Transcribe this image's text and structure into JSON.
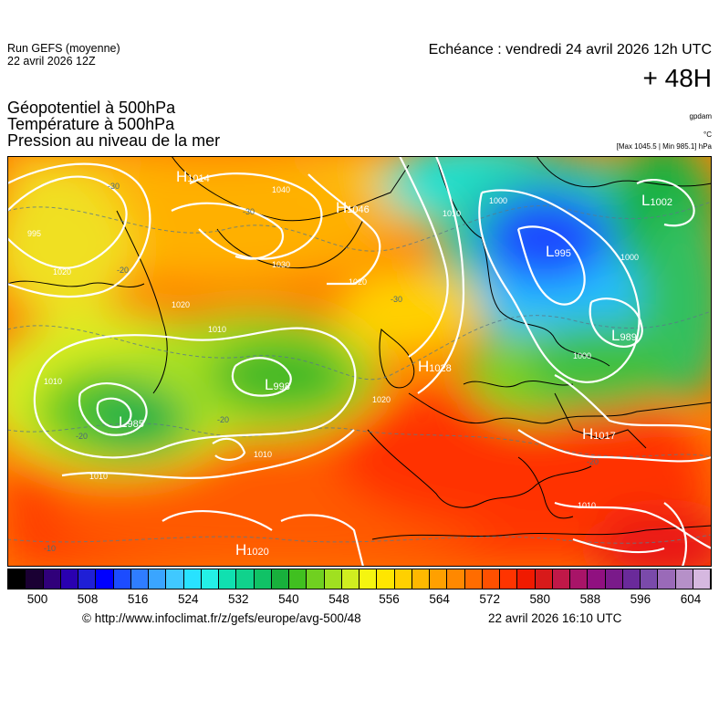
{
  "header": {
    "run_line1": "Run GEFS (moyenne)",
    "run_line2": "22 avril 2026 12Z",
    "validity": "Echéance : vendredi 24 avril 2026 12h UTC",
    "step": "+ 48H",
    "field1": "Géopotentiel à 500hPa",
    "field2": "Température à 500hPa",
    "field3": "Pression au niveau de la mer",
    "unit_gpdam": "gpdam",
    "unit_celsius": "°C",
    "pressure_range": "[Max 1045.5 | Min 985.1] hPa"
  },
  "pressure_centers": [
    {
      "kind": "H",
      "value": "1046"
    },
    {
      "kind": "H",
      "value": "1028"
    },
    {
      "kind": "H",
      "value": "1020"
    },
    {
      "kind": "H",
      "value": "1014"
    },
    {
      "kind": "H",
      "value": "1017"
    },
    {
      "kind": "L",
      "value": "998"
    },
    {
      "kind": "L",
      "value": "985"
    },
    {
      "kind": "L",
      "value": "989"
    },
    {
      "kind": "L",
      "value": "1002"
    },
    {
      "kind": "L",
      "value": "995"
    }
  ],
  "isobar_labels": [
    "995",
    "1000",
    "1000",
    "1000",
    "1010",
    "1010",
    "1010",
    "1010",
    "1010",
    "1010",
    "1020",
    "1020",
    "1020",
    "1020",
    "1030",
    "1040"
  ],
  "isotherm_labels": [
    "-30",
    "-30",
    "-30",
    "-20",
    "-20",
    "-20",
    "-20",
    "-10"
  ],
  "scale": {
    "colors": [
      "#000000",
      "#1a0033",
      "#30007a",
      "#2a00b0",
      "#1f1fd6",
      "#0000ff",
      "#1c4cff",
      "#2f7dff",
      "#3aa5ff",
      "#40c8ff",
      "#28e2ff",
      "#24f0e6",
      "#10e0b0",
      "#10d28c",
      "#10c266",
      "#18b03c",
      "#40c020",
      "#70d020",
      "#a0e020",
      "#d0ee20",
      "#f5f510",
      "#ffe600",
      "#ffd000",
      "#ffb800",
      "#ffa000",
      "#ff8800",
      "#ff6c00",
      "#ff5000",
      "#ff3400",
      "#f01a00",
      "#d81a1a",
      "#c01848",
      "#a81468",
      "#901080",
      "#7a1a8a",
      "#6a2a9a",
      "#7a4aaa",
      "#9a6ab8",
      "#b690c8",
      "#d6b8e0"
    ],
    "labels": [
      "500",
      "508",
      "516",
      "524",
      "532",
      "540",
      "548",
      "556",
      "564",
      "572",
      "580",
      "588",
      "596",
      "604"
    ]
  },
  "footer": {
    "source": "© http://www.infoclimat.fr/z/gefs/europe/avg-500/48",
    "generated": "22 avril 2026 16:10 UTC"
  }
}
